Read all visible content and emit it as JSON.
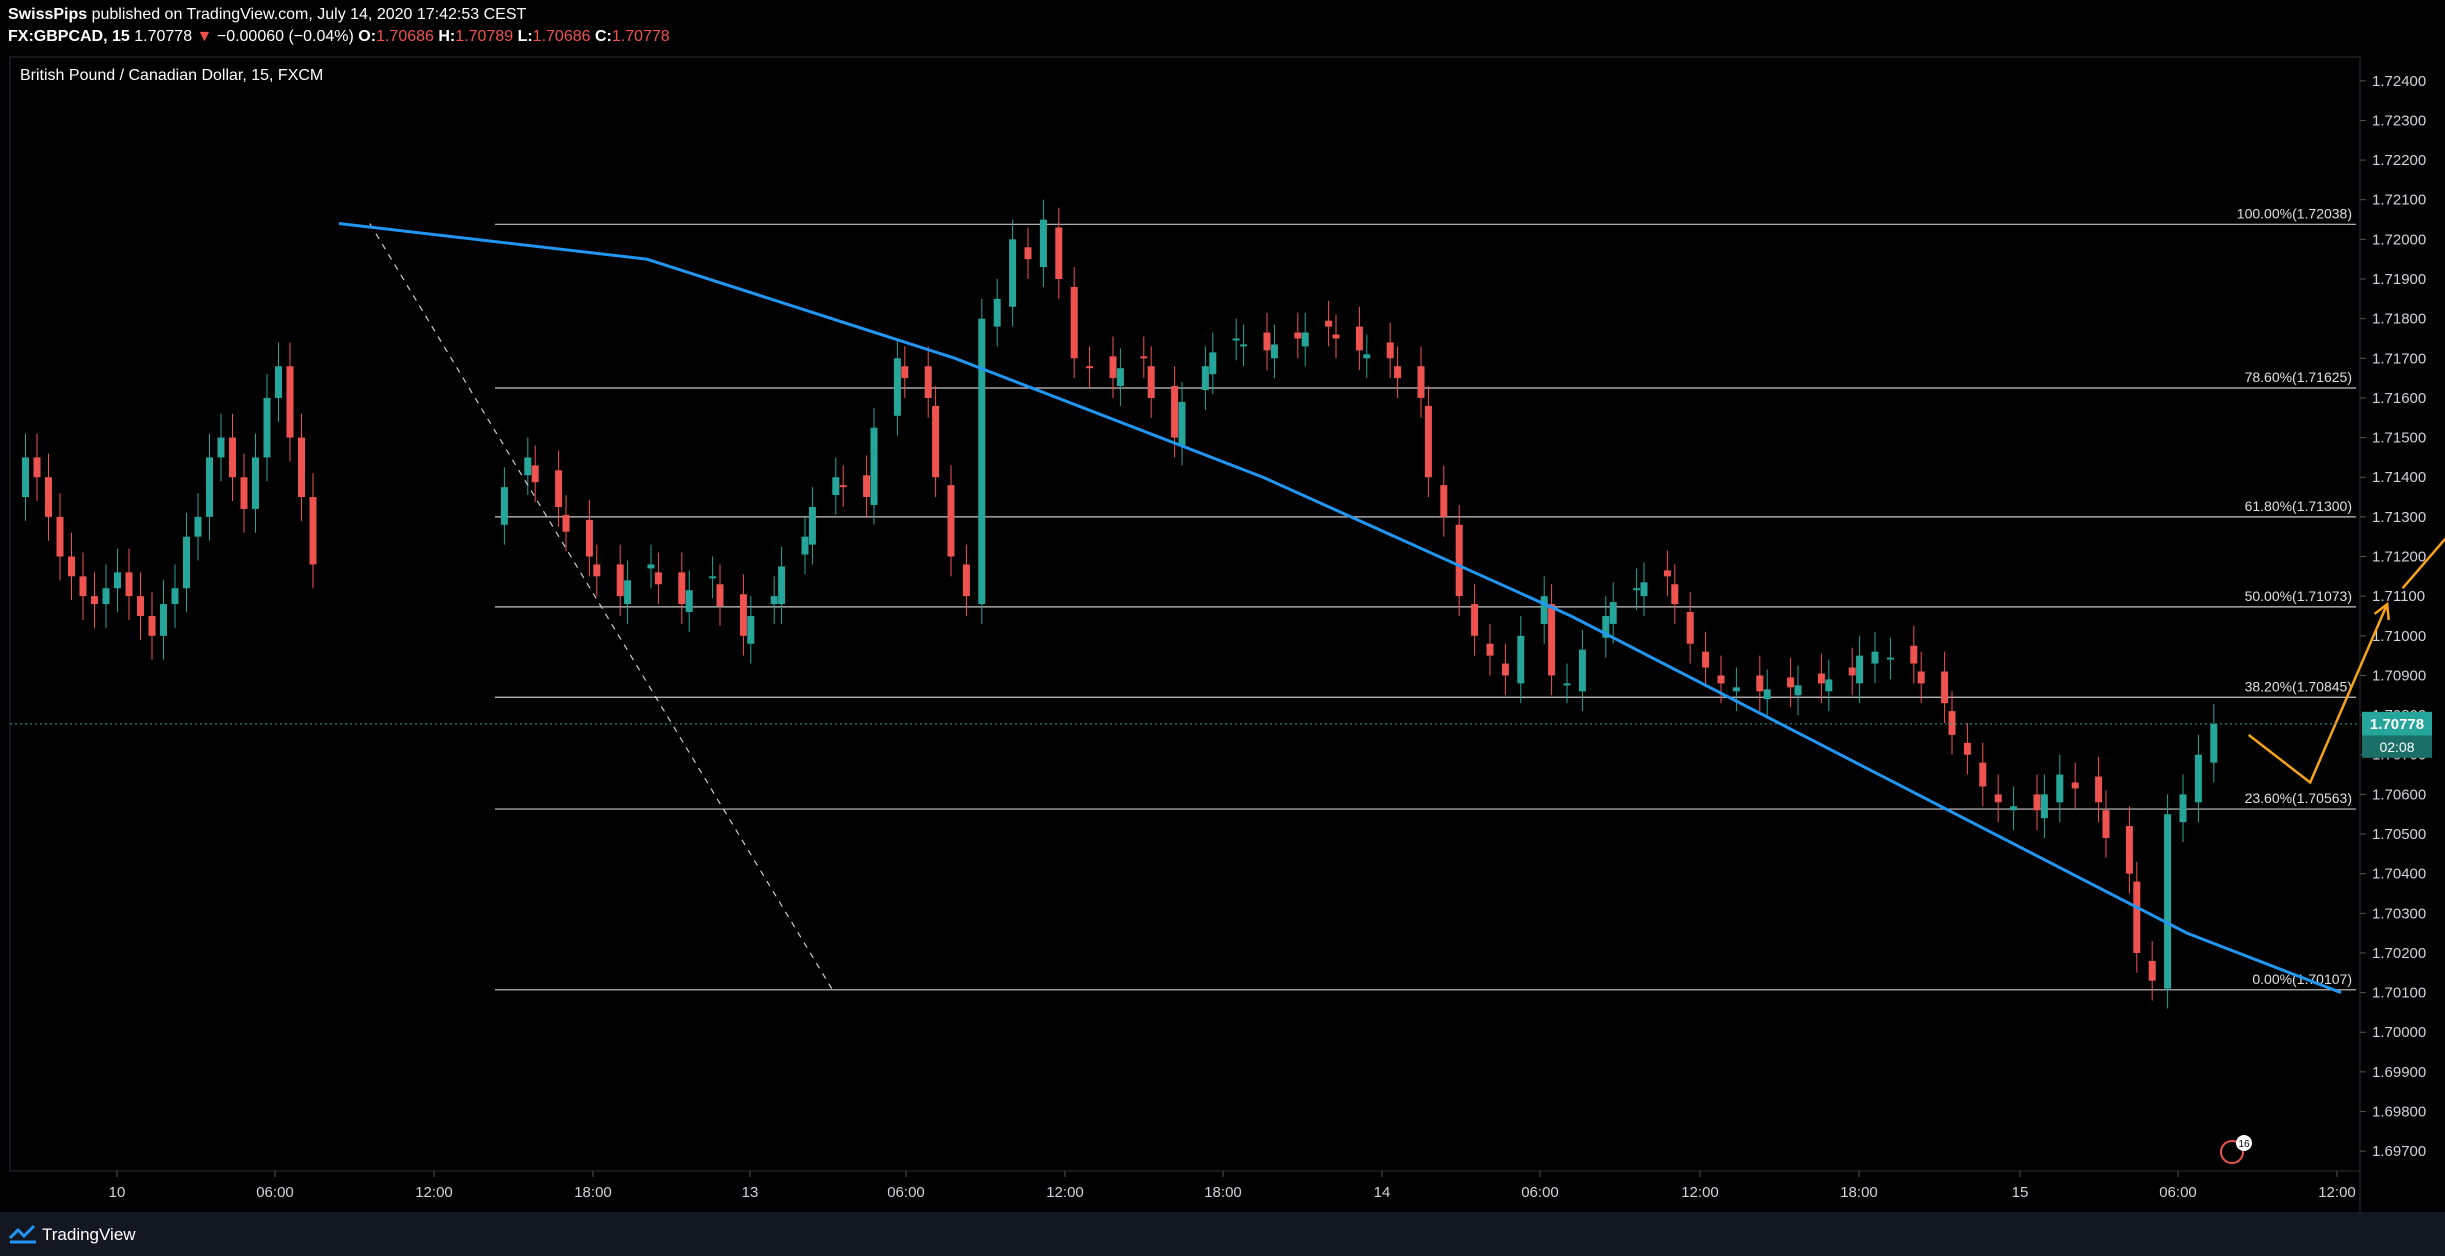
{
  "header": {
    "author": "SwissPips",
    "published_text": "published on TradingView.com, July 14, 2020 17:42:53 CEST",
    "symbol": "FX:GBPCAD, 15",
    "last": "1.70778",
    "change": "−0.00060 (−0.04%)",
    "o_label": "O:",
    "o_value": "1.70686",
    "h_label": "H:",
    "h_value": "1.70789",
    "l_label": "L:",
    "l_value": "1.70686",
    "c_label": "C:",
    "c_value": "1.70778"
  },
  "footer": {
    "brand": "TradingView"
  },
  "chart_data": {
    "type": "candlestick",
    "title": "British Pound / Canadian Dollar, 15, FXCM",
    "ylim": [
      1.6965,
      1.7246
    ],
    "y_ticks": [
      "1.72400",
      "1.72300",
      "1.72200",
      "1.72100",
      "1.72000",
      "1.71900",
      "1.71800",
      "1.71700",
      "1.71600",
      "1.71500",
      "1.71400",
      "1.71300",
      "1.71200",
      "1.71100",
      "1.71000",
      "1.70900",
      "1.70800",
      "1.70700",
      "1.70600",
      "1.70500",
      "1.70400",
      "1.70300",
      "1.70200",
      "1.70100",
      "1.70000",
      "1.69900",
      "1.69800",
      "1.69700"
    ],
    "x_ticks": [
      "10",
      "06:00",
      "12:00",
      "18:00",
      "13",
      "06:00",
      "12:00",
      "18:00",
      "14",
      "06:00",
      "12:00",
      "18:00",
      "15",
      "06:00",
      "12:00"
    ],
    "current_price_label": "1.70778",
    "countdown_label": "02:08",
    "fib_levels": [
      {
        "label": "100.00%(1.72038)",
        "price": 1.72038
      },
      {
        "label": "78.60%(1.71625)",
        "price": 1.71625
      },
      {
        "label": "61.80%(1.71300)",
        "price": 1.713
      },
      {
        "label": "50.00%(1.71073)",
        "price": 1.71073
      },
      {
        "label": "38.20%(1.70845)",
        "price": 1.70845
      },
      {
        "label": "23.60%(1.70563)",
        "price": 1.70563
      },
      {
        "label": "0.00%(1.70107)",
        "price": 1.70107
      }
    ],
    "price_path": [
      [
        0,
        1.713
      ],
      [
        2,
        1.7145
      ],
      [
        6,
        1.712
      ],
      [
        8,
        1.711
      ],
      [
        10,
        1.7118
      ],
      [
        12,
        1.7108
      ],
      [
        14,
        1.7115
      ],
      [
        16,
        1.71
      ],
      [
        18,
        1.711
      ],
      [
        20,
        1.7125
      ],
      [
        22,
        1.714
      ],
      [
        24,
        1.7135
      ],
      [
        26,
        1.717
      ],
      [
        28,
        1.716
      ],
      [
        29,
        1.714
      ],
      [
        30,
        1.712
      ],
      [
        31,
        1.711
      ],
      [
        32,
        1.718
      ],
      [
        33,
        1.7185
      ],
      [
        34,
        1.72
      ],
      [
        35,
        1.7195
      ],
      [
        36,
        1.7205
      ],
      [
        37,
        1.719
      ],
      [
        38,
        1.717
      ],
      [
        40,
        1.7165
      ],
      [
        42,
        1.717
      ],
      [
        44,
        1.715
      ],
      [
        46,
        1.7168
      ],
      [
        48,
        1.7175
      ],
      [
        50,
        1.7172
      ],
      [
        52,
        1.7175
      ],
      [
        54,
        1.7178
      ],
      [
        56,
        1.7172
      ],
      [
        58,
        1.717
      ],
      [
        60,
        1.716
      ],
      [
        61,
        1.714
      ],
      [
        62,
        1.713
      ],
      [
        63,
        1.711
      ],
      [
        64,
        1.71
      ],
      [
        65,
        1.7095
      ],
      [
        66,
        1.709
      ],
      [
        68,
        1.711
      ],
      [
        69,
        1.709
      ],
      [
        70,
        1.7088
      ],
      [
        72,
        1.7105
      ],
      [
        74,
        1.7112
      ],
      [
        76,
        1.7115
      ],
      [
        77,
        1.7108
      ],
      [
        78,
        1.7098
      ],
      [
        79,
        1.7092
      ],
      [
        80,
        1.7088
      ],
      [
        82,
        1.7086
      ],
      [
        84,
        1.7087
      ],
      [
        86,
        1.7088
      ],
      [
        88,
        1.709
      ],
      [
        89,
        1.7095
      ],
      [
        90,
        1.7096
      ],
      [
        92,
        1.7093
      ],
      [
        94,
        1.7083
      ],
      [
        95,
        1.7075
      ],
      [
        96,
        1.707
      ],
      [
        97,
        1.7062
      ],
      [
        98,
        1.7058
      ],
      [
        100,
        1.7056
      ],
      [
        101,
        1.706
      ],
      [
        102,
        1.7065
      ],
      [
        104,
        1.7058
      ],
      [
        106,
        1.704
      ],
      [
        107,
        1.702
      ],
      [
        108,
        1.7013
      ],
      [
        109,
        1.7055
      ],
      [
        110,
        1.706
      ],
      [
        111,
        1.707
      ],
      [
        112,
        1.70778
      ]
    ],
    "trendline_curve": [
      [
        -10,
        1.7204
      ],
      [
        10,
        1.7195
      ],
      [
        30,
        1.717
      ],
      [
        50,
        1.714
      ],
      [
        70,
        1.7105
      ],
      [
        90,
        1.7065
      ],
      [
        110,
        1.7025
      ],
      [
        120,
        1.701
      ]
    ],
    "fib_drag_line": [
      [
        -8,
        1.7204
      ],
      [
        22,
        1.7011
      ]
    ],
    "projection_arrows": [
      {
        "points": [
          [
            114,
            1.7075
          ],
          [
            118,
            1.7063
          ],
          [
            123,
            1.7108
          ]
        ]
      },
      {
        "points": [
          [
            124,
            1.7112
          ],
          [
            128,
            1.713
          ]
        ]
      }
    ],
    "colors": {
      "up": "#26a69a",
      "down": "#ef5350",
      "trend": "#2196f3",
      "arrow": "#f7a21b",
      "fib": "#c7c7c7",
      "price_tag": "#26a69a"
    },
    "alert_badge": "16"
  }
}
